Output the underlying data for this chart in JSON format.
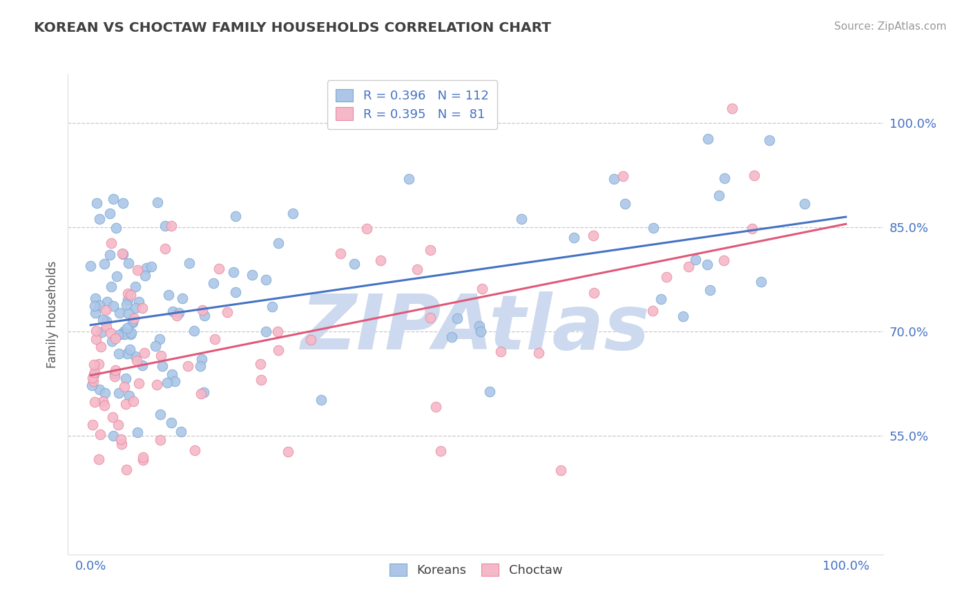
{
  "title": "KOREAN VS CHOCTAW FAMILY HOUSEHOLDS CORRELATION CHART",
  "source_text": "Source: ZipAtlas.com",
  "ylabel": "Family Households",
  "legend_label1": "Koreans",
  "legend_label2": "Choctaw",
  "r1": 0.396,
  "n1": 112,
  "r2": 0.395,
  "n2": 81,
  "color_korean_fill": "#adc6e8",
  "color_korean_edge": "#7aaad0",
  "color_choctaw_fill": "#f5b8c8",
  "color_choctaw_edge": "#e88aa0",
  "color_line_korean": "#4472c4",
  "color_line_choctaw": "#e05878",
  "color_text_blue": "#4472c4",
  "title_color": "#404040",
  "ytick_labels": [
    "55.0%",
    "70.0%",
    "85.0%",
    "100.0%"
  ],
  "ytick_values": [
    0.55,
    0.7,
    0.85,
    1.0
  ],
  "xtick_labels": [
    "0.0%",
    "100.0%"
  ],
  "xtick_values": [
    0.0,
    1.0
  ],
  "xlim": [
    -0.03,
    1.05
  ],
  "ylim": [
    0.38,
    1.07
  ],
  "grid_color": "#c8c8c8",
  "background_color": "#ffffff",
  "watermark_text": "ZIPAtlas",
  "watermark_color": "#ccd9ee"
}
